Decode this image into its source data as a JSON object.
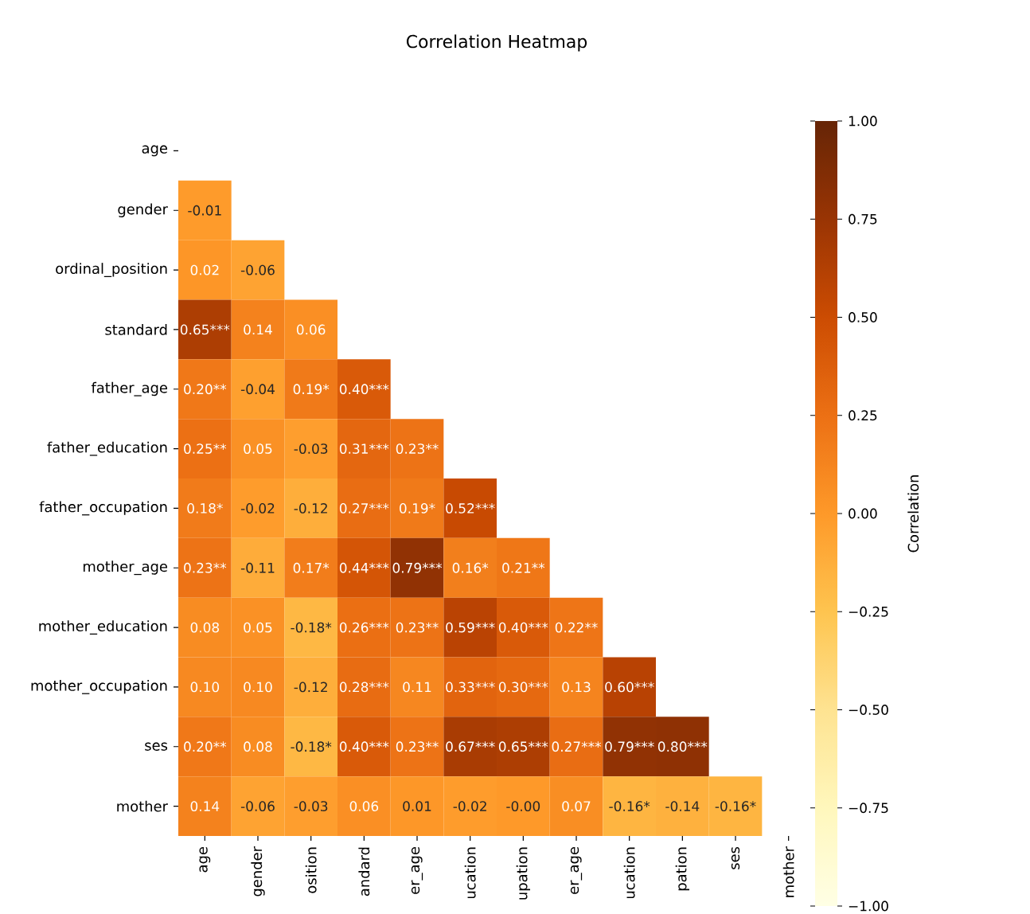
{
  "chart_data": {
    "type": "heatmap",
    "title": "Correlation Heatmap",
    "clabel": "Correlation",
    "categories": [
      "age",
      "gender",
      "osition",
      "andard",
      "er_age",
      "ucation",
      "upation",
      "er_age",
      "ucation",
      "pation",
      "ses",
      "mother"
    ],
    "y_categories": [
      "age",
      "gender",
      "ordinal_position",
      "standard",
      "father_age",
      "father_education",
      "father_occupation",
      "mother_age",
      "mother_education",
      "mother_occupation",
      "ses",
      "mother"
    ],
    "cells": [
      [
        null,
        null,
        null,
        null,
        null,
        null,
        null,
        null,
        null,
        null,
        null,
        null
      ],
      [
        -0.01,
        null,
        null,
        null,
        null,
        null,
        null,
        null,
        null,
        null,
        null,
        null
      ],
      [
        0.02,
        -0.06,
        null,
        null,
        null,
        null,
        null,
        null,
        null,
        null,
        null,
        null
      ],
      [
        0.65,
        0.14,
        0.06,
        null,
        null,
        null,
        null,
        null,
        null,
        null,
        null,
        null
      ],
      [
        0.2,
        -0.04,
        0.19,
        0.4,
        null,
        null,
        null,
        null,
        null,
        null,
        null,
        null
      ],
      [
        0.25,
        0.05,
        -0.03,
        0.31,
        0.23,
        null,
        null,
        null,
        null,
        null,
        null,
        null
      ],
      [
        0.18,
        -0.02,
        -0.12,
        0.27,
        0.19,
        0.52,
        null,
        null,
        null,
        null,
        null,
        null
      ],
      [
        0.23,
        -0.11,
        0.17,
        0.44,
        0.79,
        0.16,
        0.21,
        null,
        null,
        null,
        null,
        null
      ],
      [
        0.08,
        0.05,
        -0.18,
        0.26,
        0.23,
        0.59,
        0.4,
        0.22,
        null,
        null,
        null,
        null
      ],
      [
        0.1,
        0.1,
        -0.12,
        0.28,
        0.11,
        0.33,
        0.3,
        0.13,
        0.6,
        null,
        null,
        null
      ],
      [
        0.2,
        0.08,
        -0.18,
        0.4,
        0.23,
        0.67,
        0.65,
        0.27,
        0.79,
        0.8,
        null,
        null
      ],
      [
        0.14,
        -0.06,
        -0.03,
        0.06,
        0.01,
        -0.02,
        -0.0,
        0.07,
        -0.16,
        -0.14,
        -0.16,
        null
      ]
    ],
    "cell_labels": [
      [
        null,
        null,
        null,
        null,
        null,
        null,
        null,
        null,
        null,
        null,
        null,
        null
      ],
      [
        "-0.01",
        null,
        null,
        null,
        null,
        null,
        null,
        null,
        null,
        null,
        null,
        null
      ],
      [
        "0.02",
        "-0.06",
        null,
        null,
        null,
        null,
        null,
        null,
        null,
        null,
        null,
        null
      ],
      [
        "0.65***",
        "0.14",
        "0.06",
        null,
        null,
        null,
        null,
        null,
        null,
        null,
        null,
        null
      ],
      [
        "0.20**",
        "-0.04",
        "0.19*",
        "0.40***",
        null,
        null,
        null,
        null,
        null,
        null,
        null,
        null
      ],
      [
        "0.25**",
        "0.05",
        "-0.03",
        "0.31***",
        "0.23**",
        null,
        null,
        null,
        null,
        null,
        null,
        null
      ],
      [
        "0.18*",
        "-0.02",
        "-0.12",
        "0.27***",
        "0.19*",
        "0.52***",
        null,
        null,
        null,
        null,
        null,
        null
      ],
      [
        "0.23**",
        "-0.11",
        "0.17*",
        "0.44***",
        "0.79***",
        "0.16*",
        "0.21**",
        null,
        null,
        null,
        null,
        null
      ],
      [
        "0.08",
        "0.05",
        "-0.18*",
        "0.26***",
        "0.23**",
        "0.59***",
        "0.40***",
        "0.22**",
        null,
        null,
        null,
        null
      ],
      [
        "0.10",
        "0.10",
        "-0.12",
        "0.28***",
        "0.11",
        "0.33***",
        "0.30***",
        "0.13",
        "0.60***",
        null,
        null,
        null
      ],
      [
        "0.20**",
        "0.08",
        "-0.18*",
        "0.40***",
        "0.23**",
        "0.67***",
        "0.65***",
        "0.27***",
        "0.79***",
        "0.80***",
        null,
        null
      ],
      [
        "0.14",
        "-0.06",
        "-0.03",
        "0.06",
        "0.01",
        "-0.02",
        "-0.00",
        "0.07",
        "-0.16*",
        "-0.14",
        "-0.16*",
        null
      ]
    ],
    "clim": [
      -1,
      1
    ],
    "cticks": [
      {
        "value": -1,
        "label": "−1.00"
      },
      {
        "value": -0.75,
        "label": "−0.75"
      },
      {
        "value": -0.5,
        "label": "−0.50"
      },
      {
        "value": -0.25,
        "label": "−0.25"
      },
      {
        "value": 0,
        "label": "0.00"
      },
      {
        "value": 0.25,
        "label": "0.25"
      },
      {
        "value": 0.5,
        "label": "0.50"
      },
      {
        "value": 0.75,
        "label": "0.75"
      },
      {
        "value": 1,
        "label": "1.00"
      }
    ]
  }
}
